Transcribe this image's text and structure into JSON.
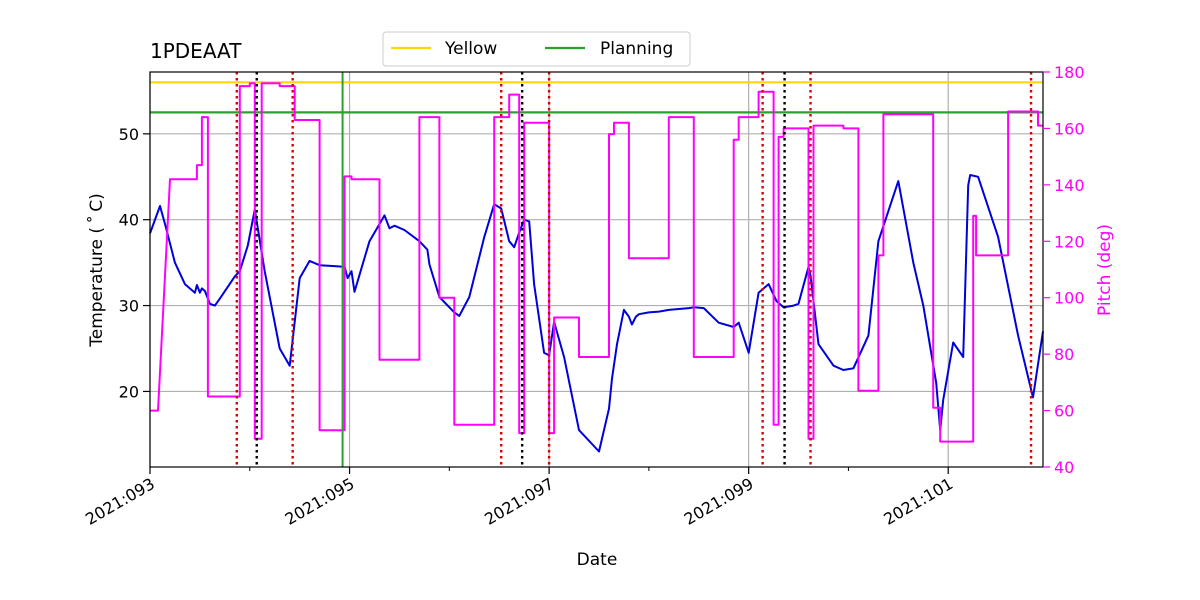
{
  "chart_data": {
    "type": "line",
    "title": "1PDEAAT",
    "xlabel": "Date",
    "ylabel": "Temperature ($^\\circ$C)",
    "ylabel_display": "Temperature ( ˚ C)",
    "y2label": "Pitch (deg)",
    "xlim": [
      93.0,
      101.95
    ],
    "ylim": [
      11.2,
      57.2
    ],
    "y2lim": [
      40,
      180
    ],
    "x_ticks": [
      93,
      95,
      97,
      99,
      101
    ],
    "x_tick_labels": [
      "2021:093",
      "2021:095",
      "2021:097",
      "2021:099",
      "2021:101"
    ],
    "x_minor_ticks": [
      94,
      96,
      98,
      100
    ],
    "y_ticks": [
      20,
      30,
      40,
      50
    ],
    "y_tick_labels": [
      "20",
      "30",
      "40",
      "50"
    ],
    "y2_ticks": [
      40,
      60,
      80,
      100,
      120,
      140,
      160,
      180
    ],
    "y2_tick_labels": [
      "40",
      "60",
      "80",
      "100",
      "120",
      "140",
      "160",
      "180"
    ],
    "grid": true,
    "legend": {
      "placement": "top-center-outside",
      "entries": [
        {
          "label": "Yellow",
          "color": "#ffd700"
        },
        {
          "label": "Planning",
          "color": "#2ca02c"
        }
      ]
    },
    "limits": [
      {
        "name": "Yellow",
        "value": 56.0,
        "color": "#ffd700"
      },
      {
        "name": "Planning",
        "value": 52.5,
        "color": "#2ca02c"
      }
    ],
    "vertical_markers": [
      {
        "x": 93.87,
        "color": "#dd0000",
        "style": "dotted"
      },
      {
        "x": 94.07,
        "color": "#000000",
        "style": "dotted"
      },
      {
        "x": 94.43,
        "color": "#dd0000",
        "style": "dotted"
      },
      {
        "x": 94.93,
        "color": "#2ca02c",
        "style": "solid"
      },
      {
        "x": 96.52,
        "color": "#dd0000",
        "style": "dotted"
      },
      {
        "x": 96.73,
        "color": "#000000",
        "style": "dotted"
      },
      {
        "x": 97.0,
        "color": "#dd0000",
        "style": "dotted"
      },
      {
        "x": 99.14,
        "color": "#dd0000",
        "style": "dotted"
      },
      {
        "x": 99.36,
        "color": "#000000",
        "style": "dotted"
      },
      {
        "x": 99.62,
        "color": "#dd0000",
        "style": "dotted"
      },
      {
        "x": 101.83,
        "color": "#dd0000",
        "style": "dotted"
      }
    ],
    "series": [
      {
        "name": "Temperature",
        "axis": "left",
        "color": "#0000dd",
        "x": [
          93.0,
          93.1,
          93.15,
          93.25,
          93.35,
          93.45,
          93.47,
          93.5,
          93.52,
          93.55,
          93.6,
          93.65,
          93.7,
          93.85,
          93.9,
          93.98,
          94.05,
          94.15,
          94.3,
          94.4,
          94.5,
          94.6,
          94.7,
          94.85,
          94.95,
          94.98,
          95.02,
          95.05,
          95.2,
          95.35,
          95.4,
          95.45,
          95.55,
          95.7,
          95.78,
          95.8,
          95.9,
          96.05,
          96.1,
          96.2,
          96.35,
          96.45,
          96.52,
          96.6,
          96.65,
          96.7,
          96.75,
          96.8,
          96.85,
          96.95,
          97.0,
          97.05,
          97.15,
          97.3,
          97.5,
          97.6,
          97.63,
          97.68,
          97.75,
          97.8,
          97.83,
          97.87,
          97.9,
          98.0,
          98.1,
          98.2,
          98.3,
          98.4,
          98.45,
          98.55,
          98.7,
          98.85,
          98.9,
          99.0,
          99.1,
          99.2,
          99.28,
          99.35,
          99.45,
          99.5,
          99.6,
          99.62,
          99.7,
          99.85,
          99.95,
          100.05,
          100.2,
          100.3,
          100.5,
          100.65,
          100.75,
          100.88,
          100.92,
          100.95,
          101.05,
          101.15,
          101.2,
          101.22,
          101.3,
          101.5,
          101.7,
          101.85,
          101.95
        ],
        "y": [
          38.4,
          41.6,
          39.5,
          35.0,
          32.5,
          31.5,
          32.4,
          31.5,
          32.0,
          31.7,
          30.2,
          30.0,
          30.8,
          33.4,
          34.0,
          37.0,
          41.2,
          34.0,
          25.0,
          23.0,
          33.2,
          35.2,
          34.7,
          34.6,
          34.5,
          33.2,
          34.0,
          31.6,
          37.5,
          40.5,
          39.0,
          39.3,
          38.8,
          37.5,
          36.5,
          34.8,
          31.0,
          29.2,
          28.8,
          31.0,
          38.0,
          41.8,
          41.3,
          37.5,
          36.8,
          38.5,
          40.0,
          39.8,
          32.5,
          24.5,
          24.2,
          28.1,
          24.0,
          15.5,
          13.0,
          18.0,
          21.5,
          25.5,
          29.5,
          28.7,
          27.8,
          28.7,
          29.0,
          29.2,
          29.3,
          29.5,
          29.6,
          29.7,
          29.8,
          29.7,
          28.0,
          27.5,
          28.0,
          24.5,
          31.5,
          32.5,
          30.5,
          29.8,
          30.0,
          30.2,
          34.5,
          33.5,
          25.5,
          23.0,
          22.5,
          22.7,
          26.5,
          37.5,
          44.5,
          35.0,
          30.0,
          21.0,
          15.5,
          19.0,
          25.7,
          24.0,
          44.0,
          45.2,
          45.0,
          38.0,
          26.5,
          19.3,
          27.0
        ],
        "y_raw_note": "approximate trace read from plot"
      },
      {
        "name": "Pitch",
        "axis": "right",
        "color": "#ff00ff",
        "x": [
          93.0,
          93.08,
          93.08,
          93.2,
          93.2,
          93.47,
          93.47,
          93.52,
          93.52,
          93.58,
          93.58,
          93.9,
          93.9,
          94.0,
          94.0,
          94.05,
          94.05,
          94.12,
          94.12,
          94.18,
          94.18,
          94.3,
          94.3,
          94.45,
          94.45,
          94.5,
          94.5,
          94.7,
          94.7,
          94.95,
          94.95,
          95.02,
          95.02,
          95.3,
          95.3,
          95.45,
          95.45,
          95.7,
          95.7,
          95.78,
          95.78,
          95.9,
          95.9,
          96.05,
          96.05,
          96.2,
          96.2,
          96.45,
          96.45,
          96.55,
          96.55,
          96.6,
          96.6,
          96.7,
          96.7,
          96.75,
          96.75,
          96.85,
          96.85,
          97.0,
          97.0,
          97.05,
          97.05,
          97.15,
          97.15,
          97.3,
          97.3,
          97.5,
          97.5,
          97.6,
          97.6,
          97.65,
          97.65,
          97.75,
          97.75,
          97.8,
          97.8,
          97.9,
          97.9,
          98.0,
          98.0,
          98.2,
          98.2,
          98.35,
          98.35,
          98.45,
          98.45,
          98.6,
          98.6,
          98.8,
          98.8,
          98.85,
          98.85,
          98.9,
          98.9,
          99.1,
          99.1,
          99.2,
          99.2,
          99.25,
          99.25,
          99.3,
          99.3,
          99.35,
          99.35,
          99.4,
          99.4,
          99.6,
          99.6,
          99.62,
          99.62,
          99.65,
          99.65,
          99.85,
          99.85,
          99.95,
          99.95,
          100.1,
          100.1,
          100.3,
          100.3,
          100.35,
          100.35,
          100.6,
          100.6,
          100.85,
          100.85,
          100.92,
          100.92,
          101.05,
          101.05,
          101.25,
          101.25,
          101.28,
          101.28,
          101.3,
          101.3,
          101.6,
          101.6,
          101.78,
          101.78,
          101.9,
          101.9,
          101.95
        ],
        "y": [
          60,
          60,
          60,
          142,
          142,
          142,
          147,
          147,
          164,
          164,
          65,
          65,
          175,
          175,
          176,
          176,
          50,
          50,
          176,
          176,
          176,
          176,
          175,
          175,
          163,
          163,
          163,
          163,
          53,
          53,
          143,
          143,
          142,
          142,
          78,
          78,
          78,
          78,
          164,
          164,
          164,
          164,
          100,
          100,
          55,
          55,
          55,
          55,
          164,
          164,
          164,
          164,
          172,
          172,
          52,
          52,
          162,
          162,
          162,
          162,
          52,
          52,
          93,
          93,
          93,
          93,
          79,
          79,
          79,
          79,
          158,
          158,
          162,
          162,
          162,
          162,
          114,
          114,
          114,
          114,
          114,
          114,
          164,
          164,
          164,
          164,
          79,
          79,
          79,
          79,
          79,
          79,
          156,
          156,
          164,
          164,
          173,
          173,
          173,
          173,
          55,
          55,
          157,
          157,
          160,
          160,
          160,
          160,
          50,
          50,
          50,
          50,
          161,
          161,
          161,
          161,
          160,
          160,
          67,
          67,
          115,
          115,
          165,
          165,
          165,
          165,
          61,
          61,
          49,
          49,
          49,
          49,
          129,
          129,
          115,
          115,
          115,
          115,
          166,
          166,
          166,
          166,
          161,
          161
        ]
      }
    ]
  }
}
